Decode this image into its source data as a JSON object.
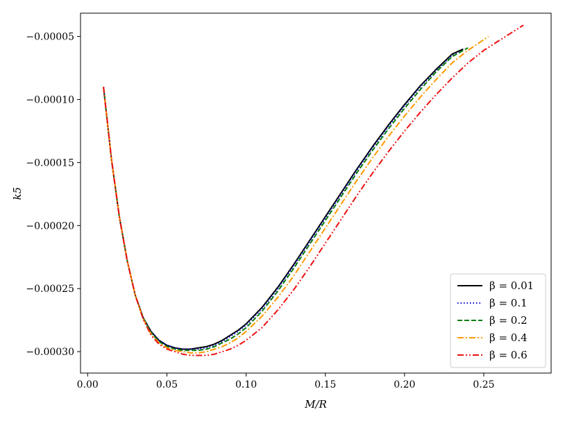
{
  "chart_data": {
    "type": "line",
    "title": "",
    "xlabel": "M/R",
    "ylabel": "k5",
    "xlim": [
      -0.0045,
      0.2925
    ],
    "ylim": [
      -0.000317,
      -3.15e-05
    ],
    "x_ticks": [
      0.0,
      0.05,
      0.1,
      0.15,
      0.2,
      0.25
    ],
    "x_tick_labels": [
      "0.00",
      "0.05",
      "0.10",
      "0.15",
      "0.20",
      "0.25"
    ],
    "y_ticks": [
      -5e-05,
      -0.0001,
      -0.00015,
      -0.0002,
      -0.00025,
      -0.0003
    ],
    "y_tick_labels": [
      "−0.00005",
      "−0.00010",
      "−0.00015",
      "−0.00020",
      "−0.00025",
      "−0.00030"
    ],
    "grid": false,
    "legend_position": "lower-right",
    "series": [
      {
        "name": "β = 0.01",
        "color": "#000000",
        "style": "solid",
        "x": [
          0.01,
          0.015,
          0.02,
          0.025,
          0.03,
          0.035,
          0.04,
          0.045,
          0.05,
          0.055,
          0.06,
          0.065,
          0.07,
          0.075,
          0.08,
          0.085,
          0.09,
          0.095,
          0.1,
          0.11,
          0.12,
          0.13,
          0.14,
          0.15,
          0.16,
          0.17,
          0.18,
          0.19,
          0.2,
          0.21,
          0.22,
          0.23,
          0.237
        ],
        "y": [
          -9e-05,
          -0.000147,
          -0.000193,
          -0.000228,
          -0.000255,
          -0.000273,
          -0.000284,
          -0.000291,
          -0.000295,
          -0.000297,
          -0.000298,
          -0.000298,
          -0.000297,
          -0.000296,
          -0.000294,
          -0.000291,
          -0.000287,
          -0.000283,
          -0.000278,
          -0.000265,
          -0.000249,
          -0.000231,
          -0.000212,
          -0.000193,
          -0.000174,
          -0.000155,
          -0.000137,
          -0.00012,
          -0.000104,
          -8.9e-05,
          -7.6e-05,
          -6.4e-05,
          -6e-05
        ]
      },
      {
        "name": "β = 0.1",
        "color": "#0000cc",
        "style": "dotted",
        "x": [
          0.01,
          0.015,
          0.02,
          0.025,
          0.03,
          0.035,
          0.04,
          0.045,
          0.05,
          0.055,
          0.06,
          0.065,
          0.07,
          0.075,
          0.08,
          0.085,
          0.09,
          0.095,
          0.1,
          0.11,
          0.12,
          0.13,
          0.14,
          0.15,
          0.16,
          0.17,
          0.18,
          0.19,
          0.2,
          0.21,
          0.22,
          0.23,
          0.237
        ],
        "y": [
          -9e-05,
          -0.000147,
          -0.000193,
          -0.000228,
          -0.000255,
          -0.000273,
          -0.000284,
          -0.000291,
          -0.000295,
          -0.000297,
          -0.000298,
          -0.000298,
          -0.000298,
          -0.000297,
          -0.000295,
          -0.000292,
          -0.000288,
          -0.000284,
          -0.000279,
          -0.000266,
          -0.00025,
          -0.000232,
          -0.000213,
          -0.000194,
          -0.000175,
          -0.000156,
          -0.000138,
          -0.000121,
          -0.000105,
          -9e-05,
          -7.7e-05,
          -6.5e-05,
          -6.1e-05
        ]
      },
      {
        "name": "β = 0.2",
        "color": "#0a7d0a",
        "style": "dashed",
        "x": [
          0.01,
          0.015,
          0.02,
          0.025,
          0.03,
          0.035,
          0.04,
          0.045,
          0.05,
          0.055,
          0.06,
          0.065,
          0.07,
          0.075,
          0.08,
          0.085,
          0.09,
          0.095,
          0.1,
          0.11,
          0.12,
          0.13,
          0.14,
          0.15,
          0.16,
          0.17,
          0.18,
          0.19,
          0.2,
          0.21,
          0.22,
          0.23,
          0.24
        ],
        "y": [
          -9e-05,
          -0.000147,
          -0.000193,
          -0.000228,
          -0.000255,
          -0.000273,
          -0.000285,
          -0.000292,
          -0.000296,
          -0.000298,
          -0.000299,
          -0.000299,
          -0.000299,
          -0.000298,
          -0.000296,
          -0.000293,
          -0.00029,
          -0.000286,
          -0.000281,
          -0.000268,
          -0.000252,
          -0.000234,
          -0.000215,
          -0.000196,
          -0.000177,
          -0.000158,
          -0.00014,
          -0.000123,
          -0.000107,
          -9.2e-05,
          -7.8e-05,
          -6.6e-05,
          -5.9e-05
        ]
      },
      {
        "name": "β = 0.4",
        "color": "#ff9900",
        "style": "dashdot",
        "x": [
          0.01,
          0.015,
          0.02,
          0.025,
          0.03,
          0.035,
          0.04,
          0.045,
          0.05,
          0.055,
          0.06,
          0.065,
          0.07,
          0.075,
          0.08,
          0.085,
          0.09,
          0.095,
          0.1,
          0.11,
          0.12,
          0.13,
          0.14,
          0.15,
          0.16,
          0.17,
          0.18,
          0.19,
          0.2,
          0.21,
          0.22,
          0.23,
          0.24,
          0.253
        ],
        "y": [
          -9e-05,
          -0.000147,
          -0.000193,
          -0.000228,
          -0.000255,
          -0.000274,
          -0.000286,
          -0.000293,
          -0.000297,
          -0.000299,
          -0.0003,
          -0.000301,
          -0.000301,
          -0.0003,
          -0.000298,
          -0.000296,
          -0.000293,
          -0.000289,
          -0.000284,
          -0.000272,
          -0.000257,
          -0.00024,
          -0.000221,
          -0.000202,
          -0.000183,
          -0.000164,
          -0.000146,
          -0.000129,
          -0.000113,
          -9.8e-05,
          -8.4e-05,
          -7.1e-05,
          -6.1e-05,
          -5e-05
        ]
      },
      {
        "name": "β = 0.6",
        "color": "#ee1111",
        "style": "dashdotdot",
        "x": [
          0.01,
          0.015,
          0.02,
          0.025,
          0.03,
          0.035,
          0.04,
          0.045,
          0.05,
          0.055,
          0.06,
          0.065,
          0.07,
          0.075,
          0.08,
          0.085,
          0.09,
          0.095,
          0.1,
          0.11,
          0.12,
          0.13,
          0.14,
          0.15,
          0.16,
          0.17,
          0.18,
          0.19,
          0.2,
          0.21,
          0.22,
          0.23,
          0.24,
          0.25,
          0.26,
          0.275
        ],
        "y": [
          -9e-05,
          -0.000147,
          -0.000193,
          -0.000228,
          -0.000255,
          -0.000274,
          -0.000287,
          -0.000294,
          -0.000298,
          -0.0003,
          -0.000302,
          -0.000303,
          -0.000303,
          -0.000303,
          -0.000302,
          -0.0003,
          -0.000298,
          -0.000295,
          -0.000291,
          -0.000281,
          -0.000267,
          -0.000251,
          -0.000233,
          -0.000214,
          -0.000195,
          -0.000176,
          -0.000158,
          -0.000141,
          -0.000125,
          -0.00011,
          -9.6e-05,
          -8.3e-05,
          -7.1e-05,
          -6.1e-05,
          -5.3e-05,
          -4.1e-05
        ]
      }
    ]
  }
}
